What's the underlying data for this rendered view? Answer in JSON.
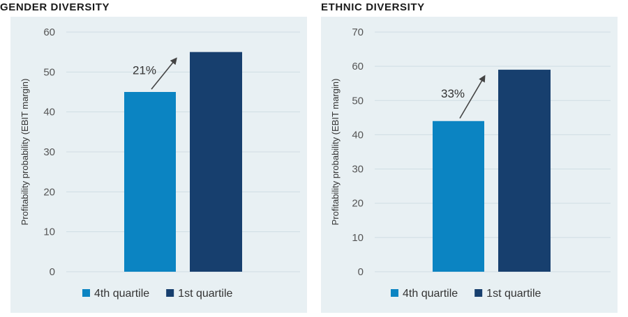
{
  "chart_data": [
    {
      "type": "bar",
      "title": "GENDER DIVERSITY",
      "ylabel": "Profitability probability (EBIT margin)",
      "ylim": [
        0,
        60
      ],
      "yticks": [
        0,
        10,
        20,
        30,
        40,
        50,
        60
      ],
      "grid": true,
      "legend_placement": "bottom",
      "categories": [
        "4th quartile",
        "1st quartile"
      ],
      "values": [
        45,
        55
      ],
      "colors": [
        "#0b84c2",
        "#173f6e"
      ],
      "annotation": "21%"
    },
    {
      "type": "bar",
      "title": "ETHNIC DIVERSITY",
      "ylabel": "Profitability probability (EBIT margin)",
      "ylim": [
        0,
        70
      ],
      "yticks": [
        0,
        10,
        20,
        30,
        40,
        50,
        60,
        70
      ],
      "grid": true,
      "legend_placement": "bottom",
      "categories": [
        "4th quartile",
        "1st quartile"
      ],
      "values": [
        44,
        59
      ],
      "colors": [
        "#0b84c2",
        "#173f6e"
      ],
      "annotation": "33%"
    }
  ]
}
